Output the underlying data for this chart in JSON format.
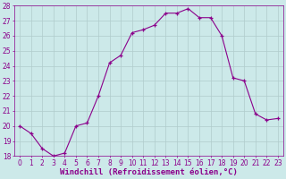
{
  "x": [
    0,
    1,
    2,
    3,
    4,
    5,
    6,
    7,
    8,
    9,
    10,
    11,
    12,
    13,
    14,
    15,
    16,
    17,
    18,
    19,
    20,
    21,
    22,
    23
  ],
  "y": [
    20,
    19.5,
    18.5,
    18,
    18.2,
    20,
    20.2,
    22,
    24.2,
    24.7,
    26.2,
    26.4,
    26.7,
    27.5,
    27.5,
    27.8,
    27.2,
    27.2,
    26,
    23.2,
    23,
    20.8,
    20.4,
    20.5
  ],
  "line_color": "#8B008B",
  "marker_color": "#8B008B",
  "bg_color": "#cce9e9",
  "grid_color": "#b0cccc",
  "xlabel": "Windchill (Refroidissement éolien,°C)",
  "xlabel_color": "#8B008B",
  "ylim": [
    18,
    28
  ],
  "xlim": [
    -0.5,
    23.5
  ],
  "yticks": [
    18,
    19,
    20,
    21,
    22,
    23,
    24,
    25,
    26,
    27,
    28
  ],
  "xticks": [
    0,
    1,
    2,
    3,
    4,
    5,
    6,
    7,
    8,
    9,
    10,
    11,
    12,
    13,
    14,
    15,
    16,
    17,
    18,
    19,
    20,
    21,
    22,
    23
  ],
  "tick_label_size": 5.5,
  "xlabel_size": 6.5,
  "axis_label_color": "#8B008B",
  "tick_color": "#8B008B",
  "spine_color": "#8B008B"
}
